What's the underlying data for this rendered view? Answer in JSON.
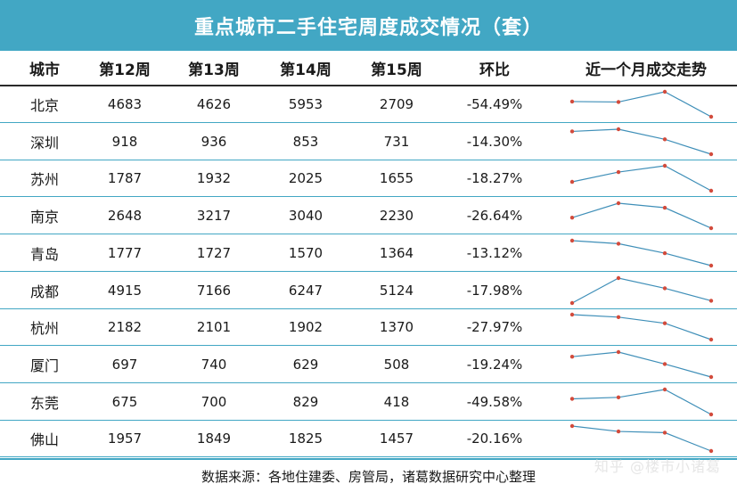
{
  "title": "重点城市二手住宅周度成交情况（套）",
  "headers": [
    "城市",
    "第12周",
    "第13周",
    "第14周",
    "第15周",
    "环比",
    "近一个月成交走势"
  ],
  "rows": [
    {
      "city": "北京",
      "w12": "4683",
      "w13": "4626",
      "w14": "5953",
      "w15": "2709",
      "change": "-54.49%"
    },
    {
      "city": "深圳",
      "w12": "918",
      "w13": "936",
      "w14": "853",
      "w15": "731",
      "change": "-14.30%"
    },
    {
      "city": "苏州",
      "w12": "1787",
      "w13": "1932",
      "w14": "2025",
      "w15": "1655",
      "change": "-18.27%"
    },
    {
      "city": "南京",
      "w12": "2648",
      "w13": "3217",
      "w14": "3040",
      "w15": "2230",
      "change": "-26.64%"
    },
    {
      "city": "青岛",
      "w12": "1777",
      "w13": "1727",
      "w14": "1570",
      "w15": "1364",
      "change": "-13.12%"
    },
    {
      "city": "成都",
      "w12": "4915",
      "w13": "7166",
      "w14": "6247",
      "w15": "5124",
      "change": "-17.98%"
    },
    {
      "city": "杭州",
      "w12": "2182",
      "w13": "2101",
      "w14": "1902",
      "w15": "1370",
      "change": "-27.97%"
    },
    {
      "city": "厦门",
      "w12": "697",
      "w13": "740",
      "w14": "629",
      "w15": "508",
      "change": "-19.24%"
    },
    {
      "city": "东莞",
      "w12": "675",
      "w13": "700",
      "w14": "829",
      "w15": "418",
      "change": "-49.58%"
    },
    {
      "city": "佛山",
      "w12": "1957",
      "w13": "1849",
      "w14": "1825",
      "w15": "1457",
      "change": "-20.16%"
    }
  ],
  "footer": "数据来源：各地住建委、房管局，诸葛数据研究中心整理",
  "watermark": "知乎 @楼市小诸葛",
  "colors": {
    "header_bg": "#42a7c4",
    "line": "#3f8fb8",
    "marker": "#d24b3c"
  },
  "chart_data": {
    "type": "table",
    "columns": [
      "城市",
      "第12周",
      "第13周",
      "第14周",
      "第15周",
      "环比"
    ],
    "categories": [
      "第12周",
      "第13周",
      "第14周",
      "第15周"
    ],
    "series": [
      {
        "name": "北京",
        "values": [
          4683,
          4626,
          5953,
          2709
        ]
      },
      {
        "name": "深圳",
        "values": [
          918,
          936,
          853,
          731
        ]
      },
      {
        "name": "苏州",
        "values": [
          1787,
          1932,
          2025,
          1655
        ]
      },
      {
        "name": "南京",
        "values": [
          2648,
          3217,
          3040,
          2230
        ]
      },
      {
        "name": "青岛",
        "values": [
          1777,
          1727,
          1570,
          1364
        ]
      },
      {
        "name": "成都",
        "values": [
          4915,
          7166,
          6247,
          5124
        ]
      },
      {
        "name": "杭州",
        "values": [
          2182,
          2101,
          1902,
          1370
        ]
      },
      {
        "name": "厦门",
        "values": [
          697,
          740,
          629,
          508
        ]
      },
      {
        "name": "东莞",
        "values": [
          675,
          700,
          829,
          418
        ]
      },
      {
        "name": "佛山",
        "values": [
          1957,
          1849,
          1825,
          1457
        ]
      }
    ]
  }
}
